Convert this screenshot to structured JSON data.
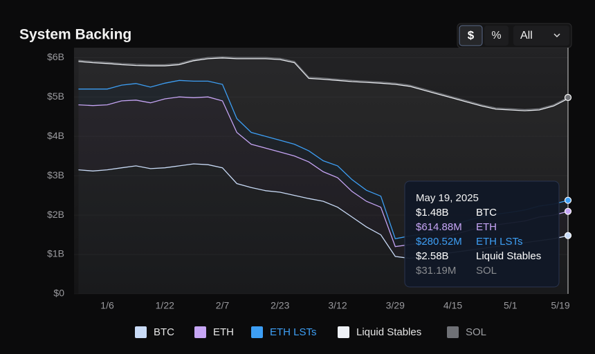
{
  "controls": {
    "currency": "$",
    "percent": "%",
    "range": "All"
  },
  "chart_data": {
    "type": "stacked_area",
    "title": "System Backing",
    "categories": [
      null,
      null,
      "1/6",
      null,
      null,
      null,
      "1/22",
      null,
      null,
      null,
      "2/7",
      null,
      null,
      null,
      "2/23",
      null,
      null,
      null,
      "3/12",
      null,
      null,
      null,
      "3/29",
      null,
      null,
      null,
      "4/15",
      null,
      null,
      null,
      "5/1",
      null,
      null,
      null,
      "5/19"
    ],
    "ylim": [
      0,
      6.25
    ],
    "yticks": [
      {
        "value": 0,
        "label": "$0"
      },
      {
        "value": 1,
        "label": "$1B"
      },
      {
        "value": 2,
        "label": "$2B"
      },
      {
        "value": 3,
        "label": "$3B"
      },
      {
        "value": 4,
        "label": "$4B"
      },
      {
        "value": 5,
        "label": "$5B"
      },
      {
        "value": 6,
        "label": "$6B"
      }
    ],
    "grid": true,
    "tooltip_title": "May 19, 2025",
    "series": [
      {
        "name": "BTC",
        "color": "#c9dbf7",
        "values": [
          3.15,
          3.12,
          3.15,
          3.2,
          3.25,
          3.18,
          3.2,
          3.25,
          3.3,
          3.28,
          3.2,
          2.8,
          2.7,
          2.62,
          2.58,
          2.5,
          2.42,
          2.35,
          2.2,
          1.95,
          1.7,
          1.5,
          0.95,
          0.9,
          0.95,
          1.0,
          1.05,
          1.1,
          1.15,
          1.2,
          1.25,
          1.3,
          1.35,
          1.4,
          1.48
        ],
        "value_labels": [
          null,
          null,
          null,
          null,
          null,
          null,
          null,
          null,
          null,
          null,
          null,
          null,
          null,
          null,
          null,
          null,
          null,
          null,
          null,
          null,
          null,
          null,
          null,
          null,
          null,
          null,
          null,
          null,
          null,
          null,
          null,
          null,
          null,
          null,
          "$1.48B"
        ]
      },
      {
        "name": "ETH",
        "color": "#c6a5f5",
        "values": [
          1.65,
          1.66,
          1.65,
          1.7,
          1.67,
          1.67,
          1.75,
          1.75,
          1.68,
          1.72,
          1.7,
          1.3,
          1.1,
          1.08,
          1.02,
          1.0,
          0.93,
          0.75,
          0.75,
          0.65,
          0.65,
          0.7,
          0.25,
          0.35,
          0.35,
          0.4,
          0.45,
          0.5,
          0.55,
          0.55,
          0.55,
          0.55,
          0.6,
          0.6,
          0.61488
        ],
        "value_labels": [
          null,
          null,
          null,
          null,
          null,
          null,
          null,
          null,
          null,
          null,
          null,
          null,
          null,
          null,
          null,
          null,
          null,
          null,
          null,
          null,
          null,
          null,
          null,
          null,
          null,
          null,
          null,
          null,
          null,
          null,
          null,
          null,
          null,
          null,
          "$614.88M"
        ]
      },
      {
        "name": "ETH LSTs",
        "color": "#3d9ff5",
        "values": [
          0.4,
          0.42,
          0.4,
          0.4,
          0.42,
          0.4,
          0.4,
          0.42,
          0.42,
          0.4,
          0.42,
          0.35,
          0.3,
          0.3,
          0.3,
          0.3,
          0.28,
          0.28,
          0.3,
          0.3,
          0.28,
          0.28,
          0.2,
          0.22,
          0.22,
          0.24,
          0.25,
          0.26,
          0.26,
          0.27,
          0.27,
          0.28,
          0.28,
          0.28,
          0.28052
        ],
        "value_labels": [
          null,
          null,
          null,
          null,
          null,
          null,
          null,
          null,
          null,
          null,
          null,
          null,
          null,
          null,
          null,
          null,
          null,
          null,
          null,
          null,
          null,
          null,
          null,
          null,
          null,
          null,
          null,
          null,
          null,
          null,
          null,
          null,
          null,
          null,
          "$280.52M"
        ]
      },
      {
        "name": "Liquid Stables",
        "color": "#eef1f6",
        "values": [
          0.7,
          0.67,
          0.65,
          0.52,
          0.46,
          0.54,
          0.44,
          0.4,
          0.52,
          0.57,
          0.67,
          1.52,
          1.87,
          1.97,
          2.05,
          2.07,
          1.84,
          2.07,
          2.17,
          2.49,
          2.74,
          2.87,
          3.92,
          3.8,
          3.65,
          3.43,
          3.22,
          3.01,
          2.81,
          2.67,
          2.6,
          2.52,
          2.44,
          2.49,
          2.58
        ],
        "value_labels": [
          null,
          null,
          null,
          null,
          null,
          null,
          null,
          null,
          null,
          null,
          null,
          null,
          null,
          null,
          null,
          null,
          null,
          null,
          null,
          null,
          null,
          null,
          null,
          null,
          null,
          null,
          null,
          null,
          null,
          null,
          null,
          null,
          null,
          null,
          "$2.58B"
        ]
      },
      {
        "name": "SOL",
        "color": "#6f7176",
        "values": [
          0.03,
          0.03,
          0.03,
          0.03,
          0.03,
          0.03,
          0.03,
          0.03,
          0.03,
          0.03,
          0.03,
          0.03,
          0.03,
          0.03,
          0.03,
          0.03,
          0.03,
          0.03,
          0.03,
          0.03,
          0.03,
          0.03,
          0.03,
          0.03,
          0.03,
          0.03,
          0.03,
          0.03,
          0.03,
          0.03,
          0.03,
          0.03,
          0.03,
          0.03,
          0.03119
        ],
        "value_labels": [
          null,
          null,
          null,
          null,
          null,
          null,
          null,
          null,
          null,
          null,
          null,
          null,
          null,
          null,
          null,
          null,
          null,
          null,
          null,
          null,
          null,
          null,
          null,
          null,
          null,
          null,
          null,
          null,
          null,
          null,
          null,
          null,
          null,
          null,
          "$31.19M"
        ]
      }
    ]
  }
}
